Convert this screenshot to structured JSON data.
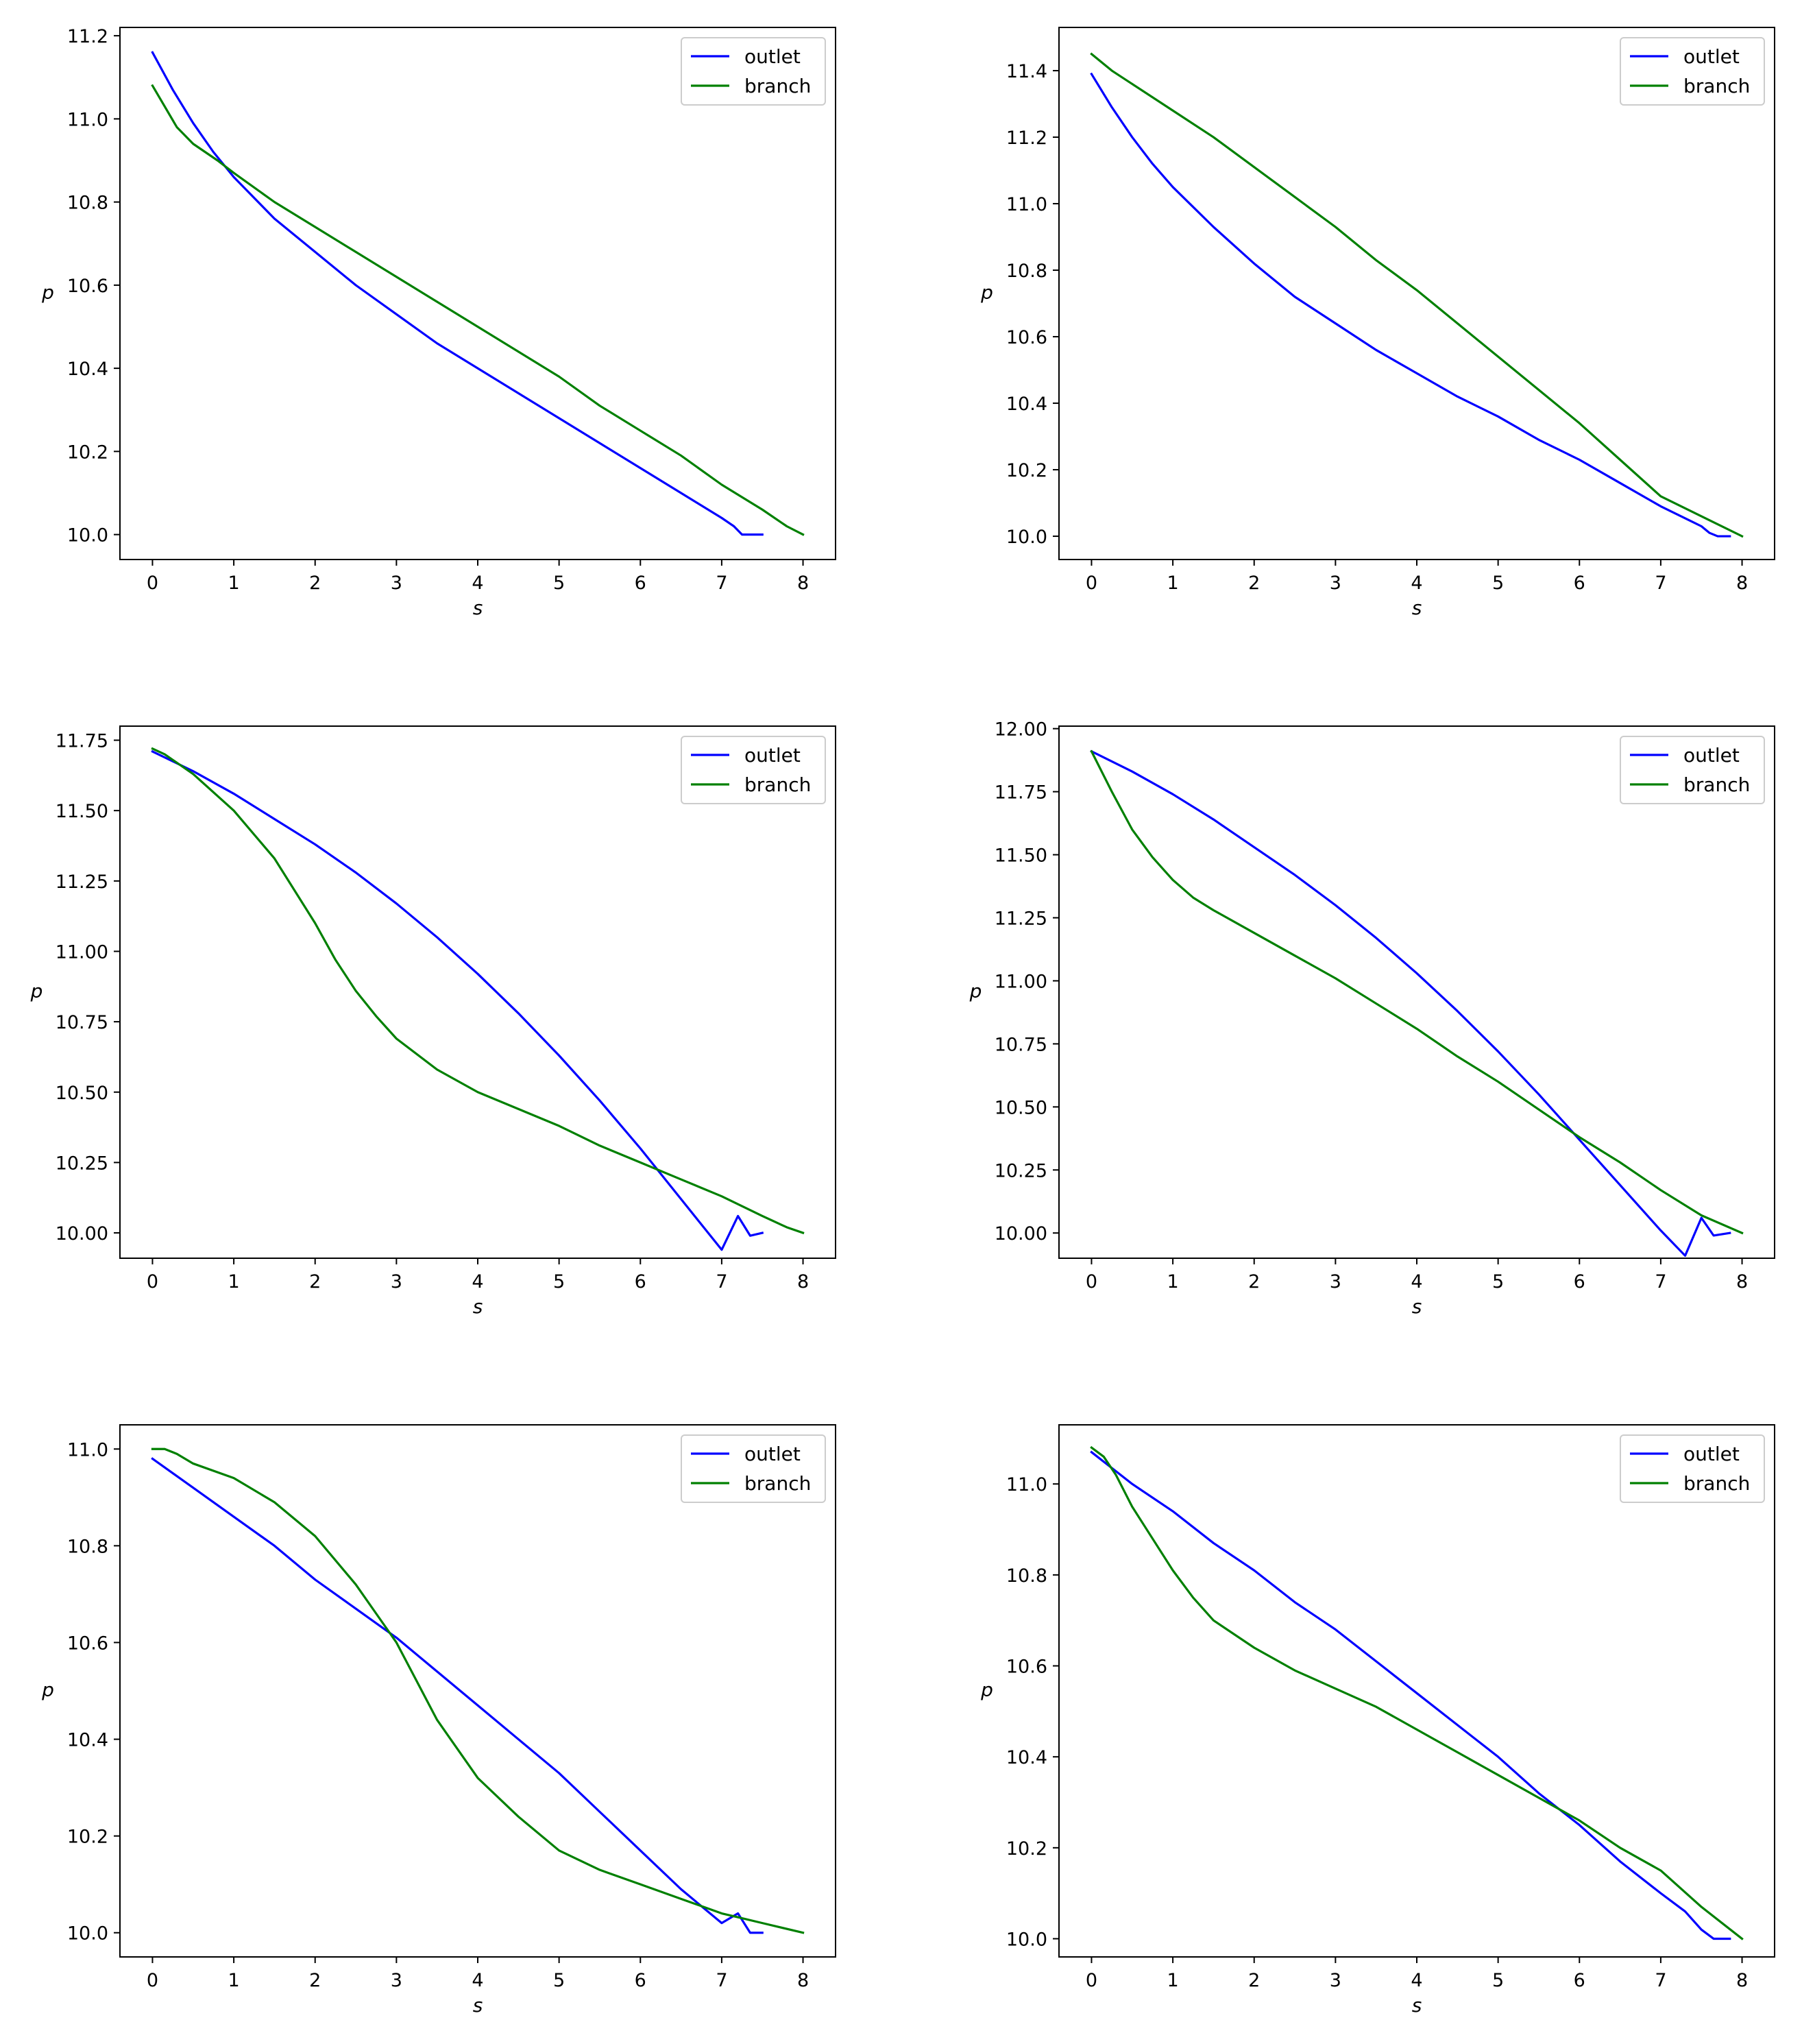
{
  "colors": {
    "outlet": "#0000ff",
    "branch": "#008000",
    "axes": "#000000",
    "background": "#ffffff"
  },
  "chart_data": [
    {
      "type": "line",
      "title": "",
      "xlabel": "s",
      "ylabel": "p",
      "xlim": [
        -0.4,
        8.4
      ],
      "ylim": [
        9.94,
        11.22
      ],
      "xticks": [
        0,
        1,
        2,
        3,
        4,
        5,
        6,
        7,
        8
      ],
      "xtick_labels": [
        "0",
        "1",
        "2",
        "3",
        "4",
        "5",
        "6",
        "7",
        "8"
      ],
      "yticks": [
        10.0,
        10.2,
        10.4,
        10.6,
        10.8,
        11.0,
        11.2
      ],
      "ytick_labels": [
        "10.0",
        "10.2",
        "10.4",
        "10.6",
        "10.8",
        "11.0",
        "11.2"
      ],
      "legend": [
        "outlet",
        "branch"
      ],
      "legend_position": "upper right",
      "grid": false,
      "series": [
        {
          "name": "outlet",
          "color": "#0000ff",
          "x": [
            0,
            0.25,
            0.5,
            0.75,
            1.0,
            1.5,
            2.0,
            2.5,
            3.0,
            3.5,
            4.0,
            4.5,
            5.0,
            5.5,
            6.0,
            6.5,
            7.0,
            7.15,
            7.25,
            7.35,
            7.5
          ],
          "y": [
            11.16,
            11.07,
            10.99,
            10.92,
            10.86,
            10.76,
            10.68,
            10.6,
            10.53,
            10.46,
            10.4,
            10.34,
            10.28,
            10.22,
            10.16,
            10.1,
            10.04,
            10.02,
            10.0,
            10.0,
            10.0
          ]
        },
        {
          "name": "branch",
          "color": "#008000",
          "x": [
            0,
            0.15,
            0.3,
            0.5,
            0.8,
            1.0,
            1.5,
            2.0,
            2.5,
            3.0,
            3.5,
            4.0,
            4.5,
            5.0,
            5.5,
            6.0,
            6.5,
            7.0,
            7.5,
            7.8,
            8.0
          ],
          "y": [
            11.08,
            11.03,
            10.98,
            10.94,
            10.9,
            10.87,
            10.8,
            10.74,
            10.68,
            10.62,
            10.56,
            10.5,
            10.44,
            10.38,
            10.31,
            10.25,
            10.19,
            10.12,
            10.06,
            10.02,
            10.0
          ]
        }
      ]
    },
    {
      "type": "line",
      "title": "",
      "xlabel": "s",
      "ylabel": "p",
      "xlim": [
        -0.4,
        8.4
      ],
      "ylim": [
        9.93,
        11.53
      ],
      "xticks": [
        0,
        1,
        2,
        3,
        4,
        5,
        6,
        7,
        8
      ],
      "xtick_labels": [
        "0",
        "1",
        "2",
        "3",
        "4",
        "5",
        "6",
        "7",
        "8"
      ],
      "yticks": [
        10.0,
        10.2,
        10.4,
        10.6,
        10.8,
        11.0,
        11.2,
        11.4
      ],
      "ytick_labels": [
        "10.0",
        "10.2",
        "10.4",
        "10.6",
        "10.8",
        "11.0",
        "11.2",
        "11.4"
      ],
      "legend": [
        "outlet",
        "branch"
      ],
      "legend_position": "upper right",
      "grid": false,
      "series": [
        {
          "name": "outlet",
          "color": "#0000ff",
          "x": [
            0,
            0.25,
            0.5,
            0.75,
            1.0,
            1.5,
            2.0,
            2.5,
            3.0,
            3.5,
            4.0,
            4.5,
            5.0,
            5.5,
            6.0,
            6.5,
            7.0,
            7.5,
            7.6,
            7.7,
            7.85
          ],
          "y": [
            11.39,
            11.29,
            11.2,
            11.12,
            11.05,
            10.93,
            10.82,
            10.72,
            10.64,
            10.56,
            10.49,
            10.42,
            10.36,
            10.29,
            10.23,
            10.16,
            10.09,
            10.03,
            10.01,
            10.0,
            10.0
          ]
        },
        {
          "name": "branch",
          "color": "#008000",
          "x": [
            0,
            0.25,
            0.5,
            1.0,
            1.5,
            2.0,
            2.5,
            3.0,
            3.5,
            4.0,
            4.5,
            5.0,
            5.5,
            6.0,
            6.5,
            7.0,
            7.5,
            8.0
          ],
          "y": [
            11.45,
            11.4,
            11.36,
            11.28,
            11.2,
            11.11,
            11.02,
            10.93,
            10.83,
            10.74,
            10.64,
            10.54,
            10.44,
            10.34,
            10.23,
            10.12,
            10.06,
            10.0
          ]
        }
      ]
    },
    {
      "type": "line",
      "title": "",
      "xlabel": "s",
      "ylabel": "p",
      "xlim": [
        -0.4,
        8.4
      ],
      "ylim": [
        9.91,
        11.8
      ],
      "xticks": [
        0,
        1,
        2,
        3,
        4,
        5,
        6,
        7,
        8
      ],
      "xtick_labels": [
        "0",
        "1",
        "2",
        "3",
        "4",
        "5",
        "6",
        "7",
        "8"
      ],
      "yticks": [
        10.0,
        10.25,
        10.5,
        10.75,
        11.0,
        11.25,
        11.5,
        11.75
      ],
      "ytick_labels": [
        "10.00",
        "10.25",
        "10.50",
        "10.75",
        "11.00",
        "11.25",
        "11.50",
        "11.75"
      ],
      "legend": [
        "outlet",
        "branch"
      ],
      "legend_position": "upper right",
      "grid": false,
      "series": [
        {
          "name": "outlet",
          "color": "#0000ff",
          "x": [
            0,
            0.5,
            1.0,
            1.5,
            2.0,
            2.5,
            3.0,
            3.5,
            4.0,
            4.5,
            5.0,
            5.5,
            6.0,
            6.5,
            7.0,
            7.2,
            7.35,
            7.5
          ],
          "y": [
            11.71,
            11.64,
            11.56,
            11.47,
            11.38,
            11.28,
            11.17,
            11.05,
            10.92,
            10.78,
            10.63,
            10.47,
            10.3,
            10.12,
            9.94,
            10.06,
            9.99,
            10.0
          ]
        },
        {
          "name": "branch",
          "color": "#008000",
          "x": [
            0,
            0.15,
            0.5,
            1.0,
            1.5,
            2.0,
            2.25,
            2.5,
            2.75,
            3.0,
            3.5,
            4.0,
            4.5,
            5.0,
            5.5,
            6.0,
            6.5,
            7.0,
            7.5,
            7.8,
            8.0
          ],
          "y": [
            11.72,
            11.7,
            11.63,
            11.5,
            11.33,
            11.1,
            10.97,
            10.86,
            10.77,
            10.69,
            10.58,
            10.5,
            10.44,
            10.38,
            10.31,
            10.25,
            10.19,
            10.13,
            10.06,
            10.02,
            10.0
          ]
        }
      ]
    },
    {
      "type": "line",
      "title": "",
      "xlabel": "s",
      "ylabel": "p",
      "xlim": [
        -0.4,
        8.4
      ],
      "ylim": [
        9.9,
        12.01
      ],
      "xticks": [
        0,
        1,
        2,
        3,
        4,
        5,
        6,
        7,
        8
      ],
      "xtick_labels": [
        "0",
        "1",
        "2",
        "3",
        "4",
        "5",
        "6",
        "7",
        "8"
      ],
      "yticks": [
        10.0,
        10.25,
        10.5,
        10.75,
        11.0,
        11.25,
        11.5,
        11.75,
        12.0
      ],
      "ytick_labels": [
        "10.00",
        "10.25",
        "10.50",
        "10.75",
        "11.00",
        "11.25",
        "11.50",
        "11.75",
        "12.00"
      ],
      "legend": [
        "outlet",
        "branch"
      ],
      "legend_position": "upper right",
      "grid": false,
      "series": [
        {
          "name": "outlet",
          "color": "#0000ff",
          "x": [
            0,
            0.5,
            1.0,
            1.5,
            2.0,
            2.5,
            3.0,
            3.5,
            4.0,
            4.5,
            5.0,
            5.5,
            6.0,
            6.5,
            7.0,
            7.3,
            7.5,
            7.65,
            7.85
          ],
          "y": [
            11.91,
            11.83,
            11.74,
            11.64,
            11.53,
            11.42,
            11.3,
            11.17,
            11.03,
            10.88,
            10.72,
            10.55,
            10.37,
            10.19,
            10.01,
            9.91,
            10.06,
            9.99,
            10.0
          ]
        },
        {
          "name": "branch",
          "color": "#008000",
          "x": [
            0,
            0.25,
            0.5,
            0.75,
            1.0,
            1.25,
            1.5,
            2.0,
            2.5,
            3.0,
            3.5,
            4.0,
            4.5,
            5.0,
            5.5,
            6.0,
            6.5,
            7.0,
            7.5,
            8.0
          ],
          "y": [
            11.91,
            11.75,
            11.6,
            11.49,
            11.4,
            11.33,
            11.28,
            11.19,
            11.1,
            11.01,
            10.91,
            10.81,
            10.7,
            10.6,
            10.49,
            10.38,
            10.28,
            10.17,
            10.07,
            10.0
          ]
        }
      ]
    },
    {
      "type": "line",
      "title": "",
      "xlabel": "s",
      "ylabel": "p",
      "xlim": [
        -0.4,
        8.4
      ],
      "ylim": [
        9.95,
        11.05
      ],
      "xticks": [
        0,
        1,
        2,
        3,
        4,
        5,
        6,
        7,
        8
      ],
      "xtick_labels": [
        "0",
        "1",
        "2",
        "3",
        "4",
        "5",
        "6",
        "7",
        "8"
      ],
      "yticks": [
        10.0,
        10.2,
        10.4,
        10.6,
        10.8,
        11.0
      ],
      "ytick_labels": [
        "10.0",
        "10.2",
        "10.4",
        "10.6",
        "10.8",
        "11.0"
      ],
      "legend": [
        "outlet",
        "branch"
      ],
      "legend_position": "upper right",
      "grid": false,
      "series": [
        {
          "name": "outlet",
          "color": "#0000ff",
          "x": [
            0,
            0.5,
            1.0,
            1.5,
            2.0,
            2.5,
            3.0,
            3.5,
            4.0,
            4.5,
            5.0,
            5.5,
            6.0,
            6.5,
            7.0,
            7.2,
            7.35,
            7.5
          ],
          "y": [
            10.98,
            10.92,
            10.86,
            10.8,
            10.73,
            10.67,
            10.61,
            10.54,
            10.47,
            10.4,
            10.33,
            10.25,
            10.17,
            10.09,
            10.02,
            10.04,
            10.0,
            10.0
          ]
        },
        {
          "name": "branch",
          "color": "#008000",
          "x": [
            0,
            0.15,
            0.3,
            0.5,
            1.0,
            1.5,
            2.0,
            2.5,
            2.75,
            3.0,
            3.25,
            3.5,
            4.0,
            4.5,
            5.0,
            5.5,
            6.0,
            6.5,
            7.0,
            7.5,
            8.0
          ],
          "y": [
            11.0,
            11.0,
            10.99,
            10.97,
            10.94,
            10.89,
            10.82,
            10.72,
            10.66,
            10.6,
            10.52,
            10.44,
            10.32,
            10.24,
            10.17,
            10.13,
            10.1,
            10.07,
            10.04,
            10.02,
            10.0
          ]
        }
      ]
    },
    {
      "type": "line",
      "title": "",
      "xlabel": "s",
      "ylabel": "p",
      "xlim": [
        -0.4,
        8.4
      ],
      "ylim": [
        9.96,
        11.13
      ],
      "xticks": [
        0,
        1,
        2,
        3,
        4,
        5,
        6,
        7,
        8
      ],
      "xtick_labels": [
        "0",
        "1",
        "2",
        "3",
        "4",
        "5",
        "6",
        "7",
        "8"
      ],
      "yticks": [
        10.0,
        10.2,
        10.4,
        10.6,
        10.8,
        11.0
      ],
      "ytick_labels": [
        "10.0",
        "10.2",
        "10.4",
        "10.6",
        "10.8",
        "11.0"
      ],
      "legend": [
        "outlet",
        "branch"
      ],
      "legend_position": "upper right",
      "grid": false,
      "series": [
        {
          "name": "outlet",
          "color": "#0000ff",
          "x": [
            0,
            0.5,
            1.0,
            1.5,
            2.0,
            2.5,
            3.0,
            3.5,
            4.0,
            4.5,
            5.0,
            5.5,
            6.0,
            6.5,
            7.0,
            7.3,
            7.5,
            7.65,
            7.85
          ],
          "y": [
            11.07,
            11.0,
            10.94,
            10.87,
            10.81,
            10.74,
            10.68,
            10.61,
            10.54,
            10.47,
            10.4,
            10.32,
            10.25,
            10.17,
            10.1,
            10.06,
            10.02,
            10.0,
            10.0
          ]
        },
        {
          "name": "branch",
          "color": "#008000",
          "x": [
            0,
            0.15,
            0.3,
            0.5,
            0.75,
            1.0,
            1.25,
            1.5,
            2.0,
            2.5,
            3.0,
            3.5,
            4.0,
            4.5,
            5.0,
            5.5,
            6.0,
            6.5,
            7.0,
            7.5,
            8.0
          ],
          "y": [
            11.08,
            11.06,
            11.02,
            10.95,
            10.88,
            10.81,
            10.75,
            10.7,
            10.64,
            10.59,
            10.55,
            10.51,
            10.46,
            10.41,
            10.36,
            10.31,
            10.26,
            10.2,
            10.15,
            10.07,
            10.0
          ]
        }
      ]
    }
  ]
}
